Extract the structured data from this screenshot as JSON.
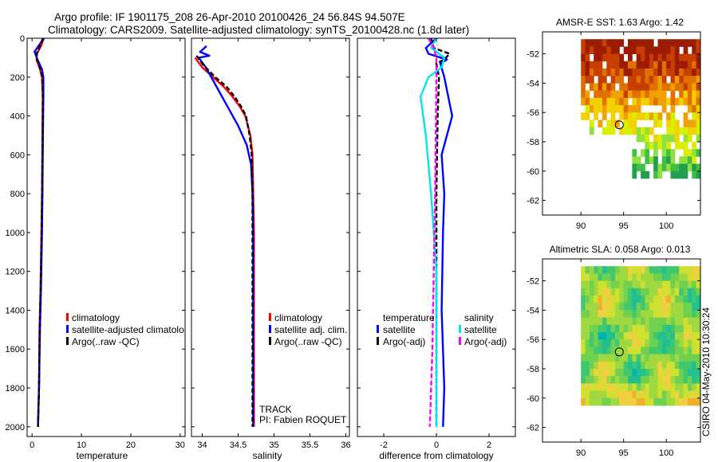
{
  "title_lines": [
    "Argo profile: IF 1901175_208 26-Apr-2010 20100426_24 56.84S 94.507E",
    "Climatology: CARS2009. Satellite-adjusted climatology: synTS_20100428.nc (1.8d later)"
  ],
  "side_stamp": "CSIRO 04-May-2010 10:30:24",
  "colors": {
    "climatology": "#ff0000",
    "satellite": "#0000ff",
    "argo": "#000000",
    "sat_salinity": "#00e5ee",
    "argo_salinity": "#ff00ff"
  },
  "chart_data": [
    {
      "id": "temperature",
      "type": "line",
      "xlabel": "temperature",
      "ylabel": "",
      "xlim": [
        -1,
        31
      ],
      "ylim": [
        2050,
        0
      ],
      "xticks": [
        0,
        10,
        20,
        30
      ],
      "yticks": [
        0,
        200,
        400,
        600,
        800,
        1000,
        1200,
        1400,
        1600,
        1800,
        2000
      ],
      "legend": {
        "placement": "lower-right",
        "entries": [
          "climatology",
          "satellite-adjusted climatolo",
          "Argo(..raw -QC)"
        ]
      },
      "series": [
        {
          "name": "climatology",
          "color": "#ff0000",
          "x": [
            2.4,
            1.8,
            1.0,
            0.9,
            1.6,
            2.0,
            2.15,
            2.1,
            2.0,
            1.9,
            1.7,
            1.5,
            1.4,
            1.2
          ],
          "y": [
            0,
            40,
            80,
            110,
            160,
            200,
            300,
            500,
            800,
            1000,
            1300,
            1500,
            1800,
            2000
          ]
        },
        {
          "name": "satellite-adjusted climatolo",
          "color": "#0000ff",
          "x": [
            2.4,
            1.3,
            0.5,
            1.1,
            2.0,
            2.3,
            2.3,
            2.2,
            2.1,
            2.0,
            1.8,
            1.6,
            1.4,
            1.2
          ],
          "y": [
            0,
            40,
            70,
            110,
            160,
            200,
            300,
            500,
            800,
            1000,
            1300,
            1500,
            1800,
            2000
          ]
        },
        {
          "name": "Argo(..raw -QC)",
          "color": "#000000",
          "x": [
            2.2,
            1.6,
            0.9,
            1.0,
            1.7,
            2.05,
            2.2,
            2.15,
            2.05,
            1.95,
            1.75,
            1.55,
            1.4,
            1.2
          ],
          "y": [
            0,
            40,
            80,
            110,
            160,
            200,
            300,
            500,
            800,
            1000,
            1300,
            1500,
            1800,
            2000
          ]
        }
      ]
    },
    {
      "id": "salinity",
      "type": "line",
      "xlabel": "salinity",
      "ylabel": "",
      "xlim": [
        33.85,
        36.05
      ],
      "ylim": [
        2050,
        0
      ],
      "xticks": [
        34,
        34.5,
        35,
        35.5,
        36
      ],
      "xtick_labels": [
        "34",
        "34.5",
        "35",
        "35.5",
        "36"
      ],
      "legend": {
        "placement": "lower-right",
        "entries": [
          "climatology",
          "satellite adj. clim.",
          "Argo(..raw -QC)"
        ]
      },
      "annotations": [
        "TRACK",
        "PI: Fabien ROQUET"
      ],
      "series": [
        {
          "name": "climatology",
          "color": "#ff0000",
          "x": [
            33.9,
            34.0,
            34.15,
            34.3,
            34.42,
            34.52,
            34.6,
            34.67,
            34.7,
            34.71,
            34.72,
            34.72,
            34.72,
            34.72
          ],
          "y": [
            100,
            150,
            200,
            250,
            300,
            350,
            400,
            500,
            600,
            800,
            1000,
            1400,
            1800,
            2000
          ]
        },
        {
          "name": "satellite adj. clim.",
          "color": "#0000ff",
          "x": [
            34.06,
            33.97,
            34.1,
            33.95,
            34.05,
            34.2,
            34.35,
            34.5,
            34.62,
            34.68,
            34.7,
            34.71,
            34.71,
            34.71,
            34.71
          ],
          "y": [
            40,
            70,
            90,
            100,
            150,
            250,
            350,
            450,
            550,
            650,
            800,
            1000,
            1400,
            1800,
            2000
          ]
        },
        {
          "name": "Argo(..raw -QC)",
          "color": "#000000",
          "x": [
            33.92,
            34.02,
            34.18,
            34.34,
            34.45,
            34.54,
            34.61,
            34.66,
            34.69,
            34.7,
            34.7,
            34.7,
            34.7,
            34.7
          ],
          "y": [
            90,
            140,
            200,
            250,
            300,
            350,
            400,
            500,
            600,
            800,
            1000,
            1400,
            1800,
            2000
          ]
        }
      ]
    },
    {
      "id": "difference",
      "type": "line",
      "xlabel": "difference from climatology",
      "ylabel": "",
      "xlim": [
        -3,
        3
      ],
      "ylim": [
        2050,
        0
      ],
      "xticks": [
        -2,
        0,
        2
      ],
      "legend": {
        "placement": "lower",
        "groups": [
          {
            "title": "temperature",
            "entries": [
              "satellite",
              "Argo(-adj)"
            ]
          },
          {
            "title": "salinity",
            "entries": [
              "satellite",
              "Argo(-adj)"
            ]
          }
        ]
      },
      "series": [
        {
          "name": "temperature satellite",
          "color": "#0000ff",
          "x": [
            0.0,
            -0.4,
            -0.3,
            0.4,
            0.15,
            0.3,
            0.6,
            0.2,
            0.3,
            0.25,
            0.2,
            0.3,
            0.25
          ],
          "y": [
            0,
            50,
            80,
            110,
            130,
            200,
            400,
            600,
            800,
            1000,
            1400,
            1800,
            2000
          ]
        },
        {
          "name": "temperature Argo(-adj)",
          "color": "#000000",
          "x": [
            -0.2,
            -0.1,
            0.5,
            0.3,
            0.0,
            0.1,
            0.05,
            0.0,
            0.0,
            0.0,
            0.0
          ],
          "y": [
            0,
            50,
            80,
            110,
            130,
            200,
            400,
            800,
            1200,
            1600,
            2000
          ]
        },
        {
          "name": "salinity satellite",
          "color": "#00e5ee",
          "x": [
            0.0,
            -0.2,
            0.3,
            0.2,
            -0.3,
            -0.6,
            -0.4,
            -0.2,
            -0.1,
            0.0,
            0.0,
            0.0
          ],
          "y": [
            0,
            50,
            100,
            150,
            200,
            300,
            500,
            800,
            1000,
            1200,
            1600,
            2000
          ]
        },
        {
          "name": "salinity Argo(-adj)",
          "color": "#ff00ff",
          "x": [
            -0.3,
            -0.1,
            0.0,
            0.0,
            -0.05,
            -0.1,
            -0.15,
            -0.2,
            -0.25
          ],
          "y": [
            0,
            50,
            100,
            200,
            800,
            1200,
            1600,
            1800,
            2000
          ]
        }
      ]
    },
    {
      "id": "amsre-sst",
      "type": "heatmap",
      "title": "AMSR-E SST: 1.63 Argo: 1.42",
      "xlim": [
        85.5,
        104
      ],
      "ylim": [
        -63,
        -50.5
      ],
      "xticks": [
        90,
        95,
        100
      ],
      "yticks": [
        -52,
        -54,
        -56,
        -58,
        -60,
        -62
      ],
      "marker": {
        "lon": 94.5,
        "lat": -56.84
      },
      "palette": [
        "#9b1c00",
        "#c83e00",
        "#e07000",
        "#f0a000",
        "#f5d000",
        "#d8f000",
        "#90e040",
        "#40c040",
        "#20a050"
      ]
    },
    {
      "id": "altimetric-sla",
      "type": "heatmap",
      "title": "Altimetric SLA: 0.058 Argo: 0.013",
      "xlim": [
        85.5,
        104
      ],
      "ylim": [
        -63,
        -50.5
      ],
      "xticks": [
        90,
        95,
        100
      ],
      "yticks": [
        -52,
        -54,
        -56,
        -58,
        -60,
        -62
      ],
      "marker": {
        "lon": 94.5,
        "lat": -56.84
      },
      "palette": [
        "#00b4b0",
        "#20c090",
        "#40c870",
        "#70d050",
        "#a0d840",
        "#d0e030",
        "#f0d040",
        "#f0b030"
      ]
    }
  ]
}
